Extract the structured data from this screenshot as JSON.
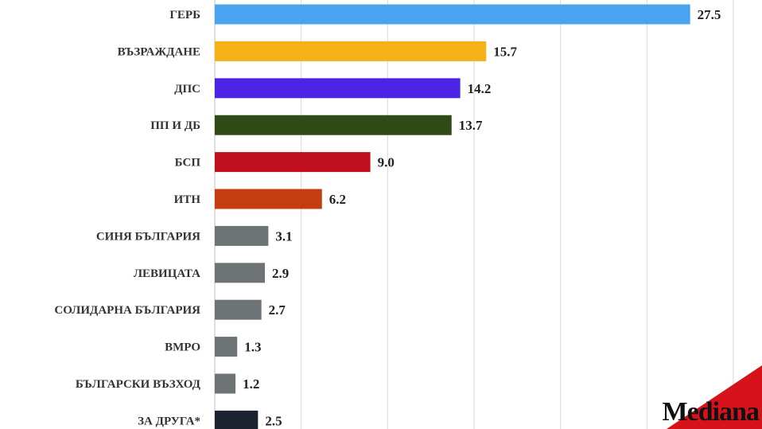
{
  "chart_data": {
    "type": "bar",
    "orientation": "horizontal",
    "categories": [
      "ГЕРБ",
      "ВЪЗРАЖДАНЕ",
      "ДПС",
      "ПП И ДБ",
      "БСП",
      "ИТН",
      "СИНЯ БЪЛГАРИЯ",
      "ЛЕВИЦАТА",
      "СОЛИДАРНА БЪЛГАРИЯ",
      "ВМРО",
      "БЪЛГАРСКИ ВЪЗХОД",
      "ЗА ДРУГА*"
    ],
    "values": [
      27.5,
      15.7,
      14.2,
      13.7,
      9.0,
      6.2,
      3.1,
      2.9,
      2.7,
      1.3,
      1.2,
      2.5
    ],
    "value_labels": [
      "27.5",
      "15.7",
      "14.2",
      "13.7",
      "9.0",
      "6.2",
      "3.1",
      "2.9",
      "2.7",
      "1.3",
      "1.2",
      "2.5"
    ],
    "colors": [
      "#4aa3ee",
      "#f5b117",
      "#4b24e6",
      "#2f4a14",
      "#c0101e",
      "#c53c10",
      "#6e7476",
      "#6e7476",
      "#6e7476",
      "#6e7476",
      "#6e7476",
      "#1c2230"
    ],
    "xlim": [
      0,
      30
    ],
    "grid": true,
    "gridlines_at": [
      0,
      5,
      10,
      15,
      20,
      25,
      30
    ],
    "title": "",
    "xlabel": "",
    "ylabel": ""
  },
  "watermark": {
    "text": "Mediana",
    "accent_color": "#d6121b"
  }
}
